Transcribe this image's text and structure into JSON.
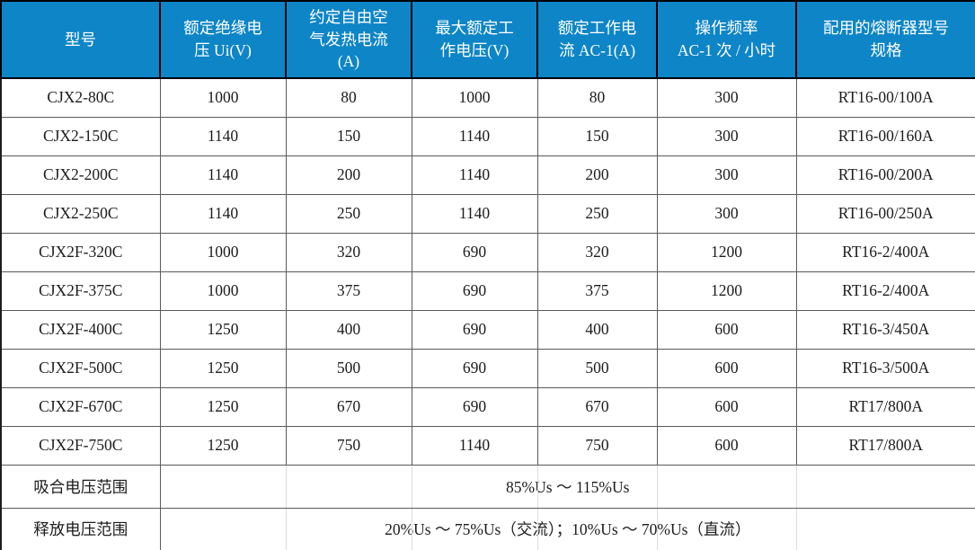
{
  "colors": {
    "header_bg": "#0E85C7",
    "header_text": "#FFFFFF",
    "grid_border": "#5A5A5A",
    "outer_border": "#1E1E1E",
    "body_text": "#1C1C1C"
  },
  "table": {
    "headers": [
      "型号",
      "额定绝缘电\n压 Ui(V)",
      "约定自由空\n气发热电流\n(A)",
      "最大额定工\n作电压(V)",
      "额定工作电\n流 AC-1(A)",
      "操作频率\nAC-1 次 / 小时",
      "配用的熔断器型号\n规格"
    ],
    "rows": [
      [
        "CJX2-80C",
        "1000",
        "80",
        "1000",
        "80",
        "300",
        "RT16-00/100A"
      ],
      [
        "CJX2-150C",
        "1140",
        "150",
        "1140",
        "150",
        "300",
        "RT16-00/160A"
      ],
      [
        "CJX2-200C",
        "1140",
        "200",
        "1140",
        "200",
        "300",
        "RT16-00/200A"
      ],
      [
        "CJX2-250C",
        "1140",
        "250",
        "1140",
        "250",
        "300",
        "RT16-00/250A"
      ],
      [
        "CJX2F-320C",
        "1000",
        "320",
        "690",
        "320",
        "1200",
        "RT16-2/400A"
      ],
      [
        "CJX2F-375C",
        "1000",
        "375",
        "690",
        "375",
        "1200",
        "RT16-2/400A"
      ],
      [
        "CJX2F-400C",
        "1250",
        "400",
        "690",
        "400",
        "600",
        "RT16-3/450A"
      ],
      [
        "CJX2F-500C",
        "1250",
        "500",
        "690",
        "500",
        "600",
        "RT16-3/500A"
      ],
      [
        "CJX2F-670C",
        "1250",
        "670",
        "690",
        "670",
        "600",
        "RT17/800A"
      ],
      [
        "CJX2F-750C",
        "1250",
        "750",
        "1140",
        "750",
        "600",
        "RT17/800A"
      ]
    ],
    "footer_rows": [
      {
        "label": "吸合电压范围",
        "value": "85%Us ～ 115%Us"
      },
      {
        "label": "释放电压范围",
        "value": "20%Us ～ 75%Us（交流）；10%Us ～ 70%Us（直流）"
      }
    ]
  }
}
